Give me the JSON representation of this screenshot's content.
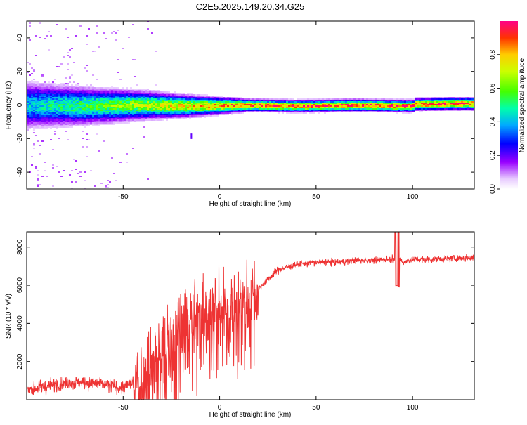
{
  "title": "C2E5.2025.149.20.34.G25",
  "colors": {
    "snr_line": "#ee3333",
    "frame": "#000000",
    "background": "#ffffff",
    "colormap": [
      "#ffffff",
      "#9900ff",
      "#0000ff",
      "#00ccff",
      "#00ff66",
      "#99ff00",
      "#ffff00",
      "#ff8800",
      "#ff0000",
      "#ff0088"
    ]
  },
  "chart_data": [
    {
      "type": "heatmap",
      "title": "",
      "xlabel": "Height of straight line (km)",
      "ylabel": "Frequency (Hz)",
      "xlim": [
        -100,
        132
      ],
      "ylim": [
        -50,
        50
      ],
      "xticks": [
        -50,
        0,
        50,
        100
      ],
      "yticks": [
        -40,
        -20,
        0,
        20,
        40
      ],
      "colorbar": {
        "label": "Normalized spectral amplitude",
        "range": [
          0,
          1
        ],
        "ticks": [
          "0.0",
          "0.2",
          "0.4",
          "0.6",
          "0.8"
        ]
      },
      "description_values": {
        "peak_frequency_hz": 0,
        "spread_hz_at_low_height": 10,
        "spread_hz_at_high_height": 2
      }
    },
    {
      "type": "line",
      "title": "",
      "xlabel": "Height of straight line (km)",
      "ylabel": "SNR (10 * v/v)",
      "xlim": [
        -100,
        132
      ],
      "ylim": [
        0,
        8800
      ],
      "xticks": [
        -50,
        0,
        50,
        100
      ],
      "yticks": [
        2000,
        4000,
        6000,
        8000
      ],
      "series": [
        {
          "x": [
            -100,
            -90,
            -80,
            -70,
            -60,
            -50,
            -45,
            -40,
            -35,
            -30,
            -25,
            -20,
            -15,
            -12,
            -10,
            -5,
            0,
            5,
            10,
            15,
            20,
            25,
            30,
            40,
            50,
            60,
            70,
            80,
            90,
            92,
            95,
            100,
            110,
            120,
            132
          ],
          "y": [
            500,
            700,
            900,
            900,
            800,
            600,
            900,
            1500,
            2200,
            2800,
            3200,
            3800,
            4500,
            4200,
            4600,
            4800,
            5000,
            4800,
            5200,
            5500,
            5800,
            6300,
            6800,
            7100,
            7200,
            7200,
            7300,
            7300,
            7400,
            7500,
            7200,
            7350,
            7350,
            7400,
            7450
          ]
        }
      ]
    }
  ]
}
